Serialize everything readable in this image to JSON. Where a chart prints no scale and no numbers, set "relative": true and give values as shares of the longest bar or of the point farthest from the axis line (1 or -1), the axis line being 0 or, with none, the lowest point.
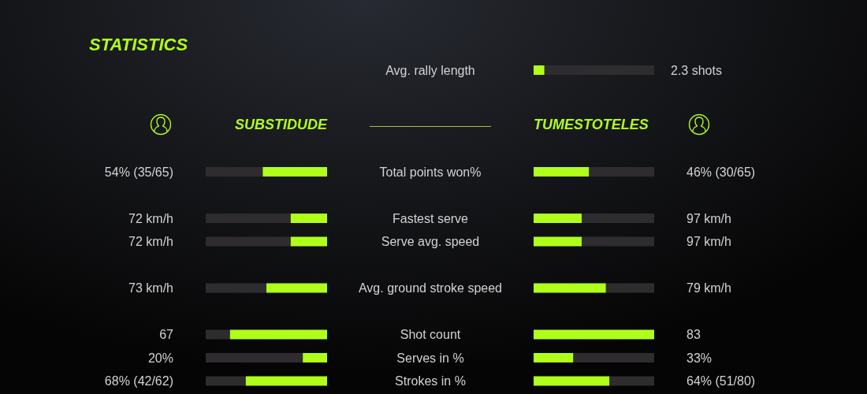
{
  "chart_data": [
    {
      "type": "bar",
      "orientation": "horizontal",
      "stacked": true,
      "relative": true,
      "tick_labels": "y",
      "categories": [
        "Avg. rally length"
      ],
      "series": [
        {
          "color": "#b0ff1a",
          "values": [
            0.09
          ]
        },
        {
          "color": "#2e2c2e",
          "values": [
            0.91
          ]
        }
      ],
      "annotations": [
        "2.3 shots"
      ]
    },
    {
      "type": "bar",
      "orientation": "horizontal",
      "stacked": true,
      "relative": true,
      "title": "STATISTICS",
      "tick_labels": false,
      "categories": [
        null,
        null,
        null,
        null,
        null,
        null,
        null
      ],
      "series": [
        {
          "color": "#2e2c2e",
          "values": [
            0.47,
            0.7,
            0.7,
            0.5,
            0.2,
            0.8,
            0.33
          ]
        },
        {
          "name": "SUBSTIDUDE",
          "color": "#b0ff1a",
          "values": [
            0.53,
            0.3,
            0.3,
            0.5,
            0.8,
            0.2,
            0.67
          ]
        }
      ],
      "annotations": [
        "54% (35/65)",
        "72 km/h",
        "72 km/h",
        "73 km/h",
        "67",
        "20%",
        "68% (42/62)"
      ]
    },
    {
      "type": "bar",
      "orientation": "horizontal",
      "stacked": true,
      "relative": true,
      "tick_labels": "y",
      "categories": [
        "Total points won%",
        "Fastest serve",
        "Serve avg. speed",
        "Avg. ground stroke speed",
        "Shot count",
        "Serves in %",
        "Strokes in %"
      ],
      "series": [
        {
          "name": "TUMESTOTELES",
          "color": "#b0ff1a",
          "values": [
            0.46,
            0.4,
            0.4,
            0.6,
            1,
            0.33,
            0.63
          ]
        },
        {
          "color": "#2e2c2e",
          "values": [
            0.54,
            0.6,
            0.6,
            0.4,
            null,
            0.67,
            0.37
          ]
        }
      ],
      "annotations": [
        "46% (30/65)",
        "97 km/h",
        "97 km/h",
        "79 km/h",
        "83",
        "33%",
        "64% (51/80)"
      ]
    }
  ]
}
